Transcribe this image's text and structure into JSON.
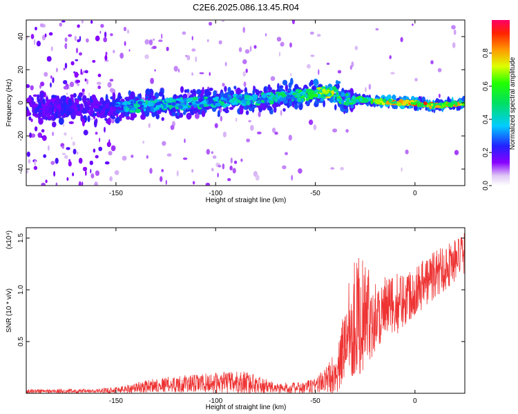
{
  "title": "C2E6.2025.086.13.45.R04",
  "chart_data": [
    {
      "type": "heatmap",
      "xlabel": "Height of straight line (km)",
      "ylabel": "Frequency (Hz)",
      "xlim": [
        -195,
        25
      ],
      "ylim": [
        -50,
        50
      ],
      "xticks": [
        -150,
        -100,
        -50,
        0
      ],
      "yticks": [
        -40,
        -20,
        0,
        20,
        40
      ],
      "colorbar": {
        "label": "Normalized spectral amplitude",
        "range": [
          0,
          1
        ],
        "ticks": [
          0.0,
          0.2,
          0.4,
          0.6,
          0.8
        ],
        "tick_labels": [
          "0.0",
          "0.2",
          "0.4",
          "0.6",
          "0.8"
        ]
      },
      "ridge": [
        {
          "x": -195,
          "y": -3,
          "amp": 0.3
        },
        {
          "x": -150,
          "y": -3,
          "amp": 0.35
        },
        {
          "x": -140,
          "y": -2,
          "amp": 0.45
        },
        {
          "x": -120,
          "y": -1,
          "amp": 0.45
        },
        {
          "x": -100,
          "y": 1,
          "amp": 0.45
        },
        {
          "x": -80,
          "y": 2,
          "amp": 0.45
        },
        {
          "x": -60,
          "y": 4,
          "amp": 0.5
        },
        {
          "x": -48,
          "y": 6,
          "amp": 0.65
        },
        {
          "x": -40,
          "y": 6,
          "amp": 0.7
        },
        {
          "x": -36,
          "y": 2,
          "amp": 0.55
        },
        {
          "x": -28,
          "y": 2,
          "amp": 0.55
        },
        {
          "x": -20,
          "y": 1,
          "amp": 0.75
        },
        {
          "x": -10,
          "y": 0,
          "amp": 0.8
        },
        {
          "x": 0,
          "y": 0,
          "amp": 0.85
        },
        {
          "x": 10,
          "y": -2,
          "amp": 0.85
        },
        {
          "x": 25,
          "y": 0,
          "amp": 0.8
        }
      ]
    },
    {
      "type": "line",
      "xlabel": "Height of straight line (km)",
      "ylabel": "SNR (10 * v/v)",
      "multiplier": "(x10⁴)",
      "xlim": [
        -195,
        25
      ],
      "ylim": [
        0,
        1.6
      ],
      "xticks": [
        -150,
        -100,
        -50,
        0
      ],
      "yticks": [
        0.5,
        1.0,
        1.5
      ],
      "ytick_labels": [
        "0.5",
        "1.0",
        "1.5"
      ],
      "color": "#ee3333",
      "envelope": [
        {
          "x": -195,
          "mean": 0.02,
          "spread": 0.02
        },
        {
          "x": -160,
          "mean": 0.02,
          "spread": 0.02
        },
        {
          "x": -145,
          "mean": 0.04,
          "spread": 0.04
        },
        {
          "x": -130,
          "mean": 0.08,
          "spread": 0.07
        },
        {
          "x": -100,
          "mean": 0.1,
          "spread": 0.1
        },
        {
          "x": -85,
          "mean": 0.1,
          "spread": 0.12
        },
        {
          "x": -70,
          "mean": 0.05,
          "spread": 0.05
        },
        {
          "x": -55,
          "mean": 0.05,
          "spread": 0.06
        },
        {
          "x": -45,
          "mean": 0.12,
          "spread": 0.12
        },
        {
          "x": -38,
          "mean": 0.25,
          "spread": 0.25
        },
        {
          "x": -33,
          "mean": 0.7,
          "spread": 0.55
        },
        {
          "x": -28,
          "mean": 0.75,
          "spread": 0.6
        },
        {
          "x": -20,
          "mean": 0.75,
          "spread": 0.35
        },
        {
          "x": -10,
          "mean": 0.85,
          "spread": 0.3
        },
        {
          "x": 0,
          "mean": 1.0,
          "spread": 0.25
        },
        {
          "x": 10,
          "mean": 1.15,
          "spread": 0.25
        },
        {
          "x": 25,
          "mean": 1.35,
          "spread": 0.2
        }
      ]
    }
  ]
}
